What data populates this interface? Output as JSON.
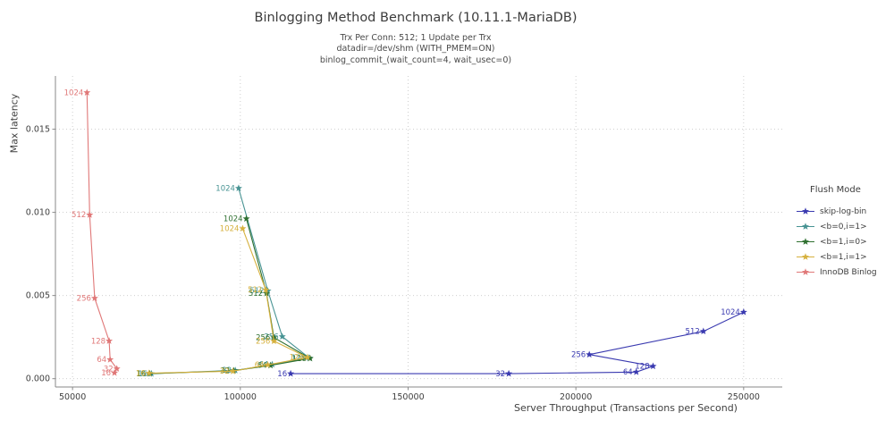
{
  "title": "Binlogging Method Benchmark (10.11.1-MariaDB)",
  "subtitle_lines": [
    "Trx Per Conn: 512; 1 Update per Trx",
    "datadir=/dev/shm (WITH_PMEM=ON)",
    "binlog_commit_(wait_count=4, wait_usec=0)"
  ],
  "chart_data": {
    "type": "line",
    "title": "Binlogging Method Benchmark (10.11.1-MariaDB)",
    "xlabel": "Server Throughput (Transactions per Second)",
    "ylabel": "Max latency",
    "xlim": [
      44900,
      261500
    ],
    "ylim": [
      -0.0005,
      0.0182
    ],
    "grid": "dotted",
    "legend_title": "Flush Mode",
    "legend_position": "right",
    "x_ticks": [
      {
        "value": 50000,
        "label": "50000"
      },
      {
        "value": 100000,
        "label": "100000"
      },
      {
        "value": 150000,
        "label": "150000"
      },
      {
        "value": 200000,
        "label": "200000"
      },
      {
        "value": 250000,
        "label": "250000"
      }
    ],
    "y_ticks": [
      {
        "value": 0.0,
        "label": "0.000"
      },
      {
        "value": 0.005,
        "label": "0.005"
      },
      {
        "value": 0.01,
        "label": "0.010"
      },
      {
        "value": 0.015,
        "label": "0.015"
      }
    ],
    "point_labels": [
      "16",
      "32",
      "64",
      "128",
      "256",
      "512",
      "1024"
    ],
    "series": [
      {
        "name": "skip-log-bin",
        "color": "#3a3ab0",
        "x": [
          115000,
          180000,
          218000,
          223000,
          204000,
          238000,
          250000
        ],
        "y": [
          0.0003,
          0.0003,
          0.0004,
          0.00075,
          0.00145,
          0.00285,
          0.004
        ]
      },
      {
        "name": "<b=0,i=1>",
        "color": "#479393",
        "x": [
          73500,
          98500,
          109500,
          120500,
          112500,
          108200,
          99500
        ],
        "y": [
          0.0003,
          0.0005,
          0.00085,
          0.00125,
          0.00253,
          0.00528,
          0.01145
        ]
      },
      {
        "name": "<b=1,i=0>",
        "color": "#2f7030",
        "x": [
          73000,
          98000,
          109000,
          120800,
          110000,
          107800,
          101800
        ],
        "y": [
          0.0003,
          0.00048,
          0.0008,
          0.00122,
          0.00247,
          0.00513,
          0.00962
        ]
      },
      {
        "name": "<b=1,i=1>",
        "color": "#d6b13e",
        "x": [
          72800,
          97800,
          108200,
          120000,
          110000,
          107600,
          100700
        ],
        "y": [
          0.00033,
          0.00045,
          0.00083,
          0.00128,
          0.00226,
          0.00534,
          0.00903
        ]
      },
      {
        "name": "InnoDB Binlog",
        "color": "#e07878",
        "x": [
          62500,
          63200,
          61200,
          60900,
          56600,
          55100,
          54300
        ],
        "y": [
          0.00035,
          0.0006,
          0.00115,
          0.00227,
          0.00484,
          0.00985,
          0.0172
        ]
      }
    ]
  }
}
